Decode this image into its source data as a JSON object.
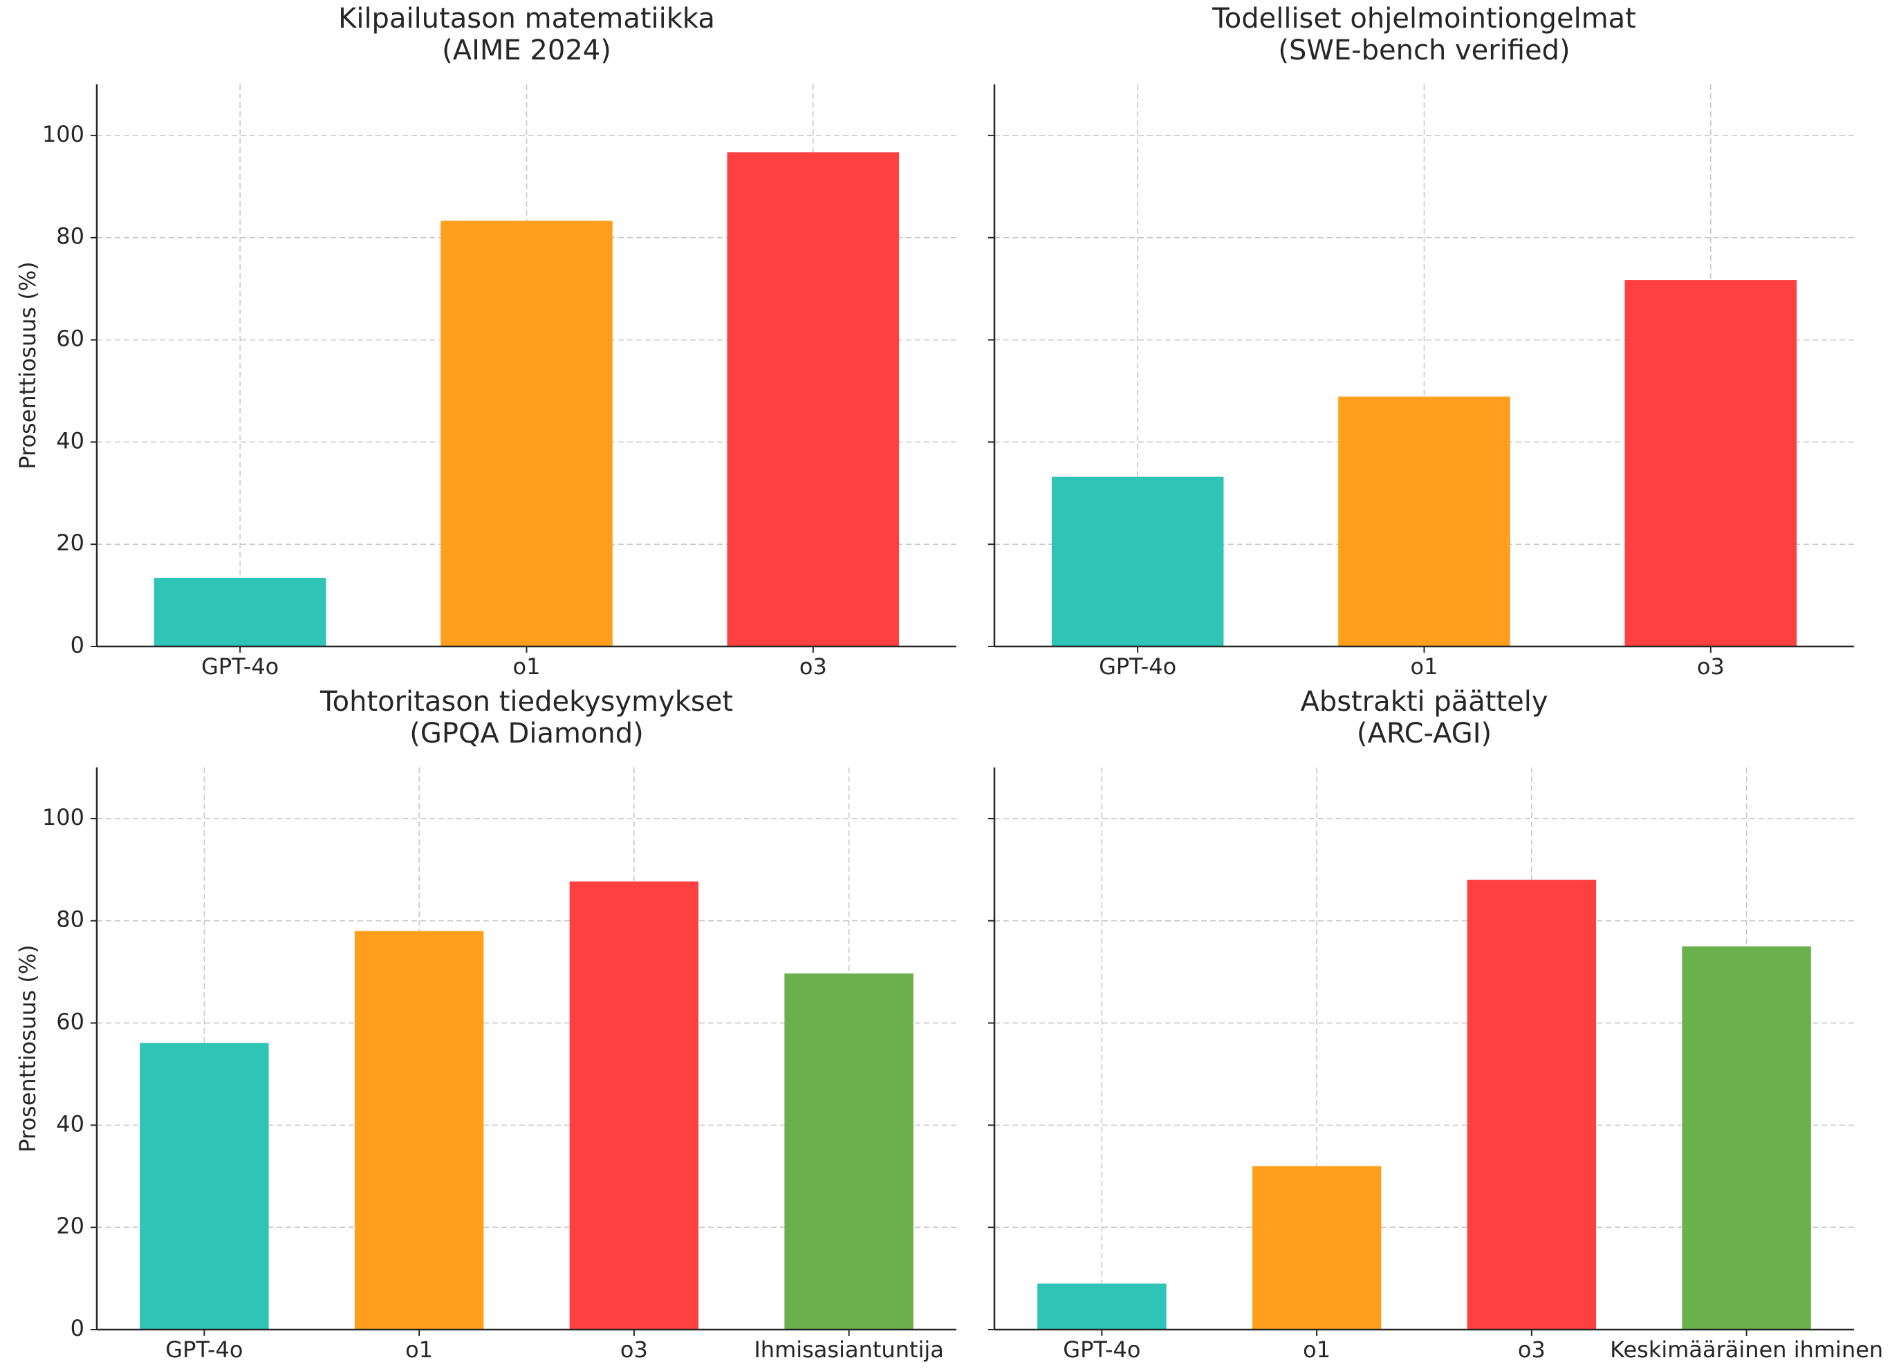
{
  "chart_data": [
    {
      "type": "bar",
      "title": "Kilpailutason matematiikka\n(AIME 2024)",
      "categories": [
        "GPT-4o",
        "o1",
        "o3"
      ],
      "values": [
        13.4,
        83.3,
        96.7
      ],
      "colors": [
        "#2ec4b6",
        "#ff9f1c",
        "#ff4040"
      ],
      "ylabel": "Prosenttiosuus (%)",
      "ylim": [
        0,
        110
      ],
      "yticks": [
        0,
        20,
        40,
        60,
        80,
        100
      ],
      "grid": true
    },
    {
      "type": "bar",
      "title": "Todelliset ohjelmointiongelmat\n(SWE-bench verified)",
      "categories": [
        "GPT-4o",
        "o1",
        "o3"
      ],
      "values": [
        33.2,
        48.9,
        71.7
      ],
      "colors": [
        "#2ec4b6",
        "#ff9f1c",
        "#ff4040"
      ],
      "ylabel": "",
      "ylim": [
        0,
        110
      ],
      "yticks": [
        0,
        20,
        40,
        60,
        80,
        100
      ],
      "grid": true
    },
    {
      "type": "bar",
      "title": "Tohtoritason tiedekysymykset\n(GPQA Diamond)",
      "categories": [
        "GPT-4o",
        "o1",
        "o3",
        "Ihmisasiantuntija"
      ],
      "values": [
        56.1,
        78.0,
        87.7,
        69.7
      ],
      "colors": [
        "#2ec4b6",
        "#ff9f1c",
        "#ff4040",
        "#6ab04c"
      ],
      "ylabel": "Prosenttiosuus (%)",
      "ylim": [
        0,
        110
      ],
      "yticks": [
        0,
        20,
        40,
        60,
        80,
        100
      ],
      "grid": true
    },
    {
      "type": "bar",
      "title": "Abstrakti päättely\n(ARC-AGI)",
      "categories": [
        "GPT-4o",
        "o1",
        "o3",
        "Keskimääräinen ihminen"
      ],
      "values": [
        9.0,
        32.0,
        88.0,
        75.0
      ],
      "colors": [
        "#2ec4b6",
        "#ff9f1c",
        "#ff4040",
        "#6ab04c"
      ],
      "ylabel": "",
      "ylim": [
        0,
        110
      ],
      "yticks": [
        0,
        20,
        40,
        60,
        80,
        100
      ],
      "grid": true
    }
  ]
}
